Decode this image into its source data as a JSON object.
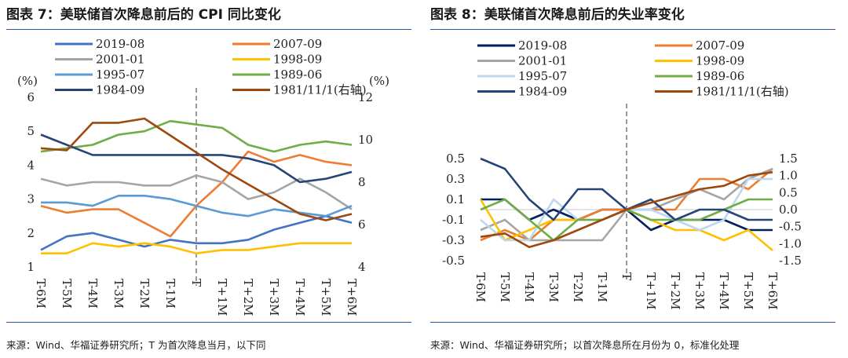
{
  "panels": [
    {
      "title": "图表 7：美联储首次降息前后的 CPI 同比变化",
      "source": "来源：Wind、华福证券研究所；T 为首次降息当月，以下同",
      "chart_data": {
        "type": "line",
        "categories": [
          "T-6M",
          "T-5M",
          "T-4M",
          "T-3M",
          "T-2M",
          "T-1M",
          "T",
          "T+1M",
          "T+2M",
          "T+3M",
          "T+4M",
          "T+5M",
          "T+6M"
        ],
        "y_unit_left": "(%)",
        "y_unit_right": "(%)",
        "ylim_left": [
          1,
          6
        ],
        "yticks_left": [
          "1",
          "2",
          "3",
          "4",
          "5",
          "6"
        ],
        "ylim_right": [
          4,
          12
        ],
        "yticks_right": [
          "4",
          "6",
          "8",
          "10",
          "12"
        ],
        "series": [
          {
            "name": "2019-08",
            "color": "#4472C4",
            "axis": "left",
            "values": [
              1.5,
              1.9,
              2.0,
              1.8,
              1.6,
              1.8,
              1.7,
              1.7,
              1.8,
              2.1,
              2.3,
              2.5,
              2.3
            ]
          },
          {
            "name": "2007-09",
            "color": "#ED7D31",
            "axis": "left",
            "values": [
              2.8,
              2.6,
              2.7,
              2.7,
              2.3,
              1.9,
              2.8,
              3.5,
              4.4,
              4.1,
              4.3,
              4.1,
              4.0
            ]
          },
          {
            "name": "2001-01",
            "color": "#A5A5A5",
            "axis": "left",
            "values": [
              3.6,
              3.4,
              3.5,
              3.5,
              3.4,
              3.4,
              3.7,
              3.5,
              3.0,
              3.2,
              3.6,
              3.2,
              2.7
            ]
          },
          {
            "name": "1998-09",
            "color": "#FFC000",
            "axis": "left",
            "values": [
              1.4,
              1.4,
              1.7,
              1.6,
              1.7,
              1.6,
              1.4,
              1.5,
              1.5,
              1.6,
              1.7,
              1.7,
              1.7
            ]
          },
          {
            "name": "1995-07",
            "color": "#5B9BD5",
            "axis": "left",
            "values": [
              2.9,
              2.9,
              2.8,
              3.1,
              3.1,
              3.0,
              2.8,
              2.6,
              2.5,
              2.7,
              2.6,
              2.5,
              2.8
            ]
          },
          {
            "name": "1989-06",
            "color": "#70AD47",
            "axis": "left",
            "values": [
              4.4,
              4.5,
              4.6,
              4.9,
              5.0,
              5.3,
              5.2,
              5.1,
              4.6,
              4.4,
              4.6,
              4.7,
              4.6
            ]
          },
          {
            "name": "1984-09",
            "color": "#264478",
            "axis": "left",
            "values": [
              4.9,
              4.6,
              4.3,
              4.3,
              4.3,
              4.3,
              4.3,
              4.3,
              4.2,
              4.0,
              3.5,
              3.6,
              3.8
            ]
          },
          {
            "name": "1981/11/1(右轴)",
            "color": "#9E480E",
            "axis": "right",
            "values": [
              9.6,
              9.5,
              10.8,
              10.8,
              11.0,
              10.2,
              9.4,
              8.6,
              7.9,
              7.2,
              6.5,
              6.2,
              6.5
            ]
          }
        ]
      }
    },
    {
      "title": "图表 8：美联储首次降息前后的失业率变化",
      "source": "来源：Wind、华福证券研究所；以首次降息所在月份为 0，标准化处理",
      "chart_data": {
        "type": "line",
        "categories": [
          "T-6M",
          "T-5M",
          "T-4M",
          "T-3M",
          "T-2M",
          "T-1M",
          "T",
          "T+1M",
          "T+2M",
          "T+3M",
          "T+4M",
          "T+5M",
          "T+6M"
        ],
        "ylim_left": [
          -0.5,
          0.5
        ],
        "yticks_left": [
          "-0.5",
          "-0.3",
          "-0.1",
          "0.1",
          "0.3",
          "0.5"
        ],
        "ylim_right": [
          -1.5,
          1.5
        ],
        "yticks_right": [
          "-1.5",
          "-1.0",
          "-0.5",
          "0.0",
          "0.5",
          "1.0",
          "1.5"
        ],
        "series": [
          {
            "name": "2019-08",
            "color": "#002060",
            "axis": "left",
            "values": [
              0.1,
              0.1,
              -0.1,
              0.0,
              -0.1,
              0.0,
              0.0,
              -0.2,
              -0.1,
              -0.1,
              -0.1,
              -0.2,
              -0.2
            ]
          },
          {
            "name": "2007-09",
            "color": "#ED7D31",
            "axis": "left",
            "values": [
              -0.3,
              -0.2,
              -0.3,
              -0.1,
              -0.1,
              0.0,
              0.0,
              0.0,
              0.0,
              0.3,
              0.3,
              0.2,
              0.4
            ]
          },
          {
            "name": "2001-01",
            "color": "#A5A5A5",
            "axis": "left",
            "values": [
              -0.2,
              -0.1,
              -0.3,
              -0.3,
              -0.3,
              -0.3,
              0.0,
              0.0,
              0.1,
              0.2,
              0.1,
              0.3,
              0.4
            ]
          },
          {
            "name": "1998-09",
            "color": "#FFC000",
            "axis": "left",
            "values": [
              0.1,
              -0.3,
              -0.2,
              -0.1,
              -0.1,
              -0.1,
              0.0,
              -0.1,
              -0.2,
              -0.2,
              -0.3,
              -0.2,
              -0.4
            ]
          },
          {
            "name": "1995-07",
            "color": "#BDD7EE",
            "axis": "left",
            "values": [
              -0.1,
              -0.3,
              -0.3,
              0.1,
              -0.1,
              -0.1,
              0.0,
              0.0,
              -0.1,
              -0.2,
              -0.1,
              0.3,
              0.3
            ]
          },
          {
            "name": "1989-06",
            "color": "#70AD47",
            "axis": "left",
            "values": [
              0.0,
              0.1,
              -0.1,
              -0.3,
              -0.1,
              -0.1,
              0.0,
              -0.1,
              -0.1,
              -0.1,
              0.0,
              0.1,
              0.1
            ]
          },
          {
            "name": "1984-09",
            "color": "#264478",
            "axis": "left",
            "values": [
              0.5,
              0.4,
              0.1,
              -0.1,
              0.2,
              0.2,
              0.0,
              0.1,
              -0.1,
              0.0,
              0.0,
              -0.1,
              -0.1
            ]
          },
          {
            "name": "1981/11/1(右轴)",
            "color": "#9E480E",
            "axis": "right",
            "values": [
              -0.8,
              -0.7,
              -1.1,
              -0.9,
              -0.6,
              -0.3,
              0.0,
              0.2,
              0.4,
              0.6,
              0.7,
              1.0,
              1.1
            ]
          }
        ]
      }
    }
  ]
}
